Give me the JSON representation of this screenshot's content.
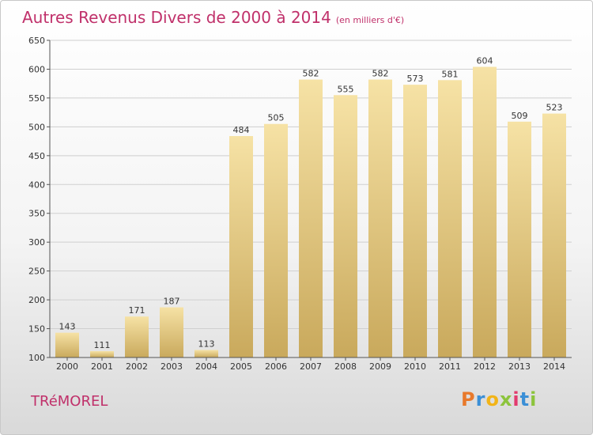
{
  "title": "Autres Revenus Divers de 2000 à 2014",
  "title_unit": "(en milliers d'€)",
  "town": "TRéMOREL",
  "logo": {
    "letters": [
      "P",
      "r",
      "o",
      "x",
      "i",
      "t",
      "i"
    ],
    "colors": [
      "#e8792b",
      "#3b8fd6",
      "#f2b418",
      "#8cc43c",
      "#e23b6e",
      "#3b8fd6",
      "#8cc43c"
    ]
  },
  "colors": {
    "bar_top": "#f6e2a5",
    "bar_bottom": "#c9a95c",
    "grid": "#cfcfcf",
    "accent": "#c0306a"
  },
  "chart_data": {
    "type": "bar",
    "title": "Autres Revenus Divers de 2000 à 2014",
    "ylabel": "",
    "xlabel": "",
    "categories": [
      "2000",
      "2001",
      "2002",
      "2003",
      "2004",
      "2005",
      "2006",
      "2007",
      "2008",
      "2009",
      "2010",
      "2011",
      "2012",
      "2013",
      "2014"
    ],
    "values": [
      143,
      111,
      171,
      187,
      113,
      484,
      505,
      582,
      555,
      582,
      573,
      581,
      604,
      509,
      523
    ],
    "ylim": [
      100,
      650
    ],
    "yticks": [
      100,
      150,
      200,
      250,
      300,
      350,
      400,
      450,
      500,
      550,
      600,
      650
    ],
    "grid": true,
    "data_labels": true
  }
}
